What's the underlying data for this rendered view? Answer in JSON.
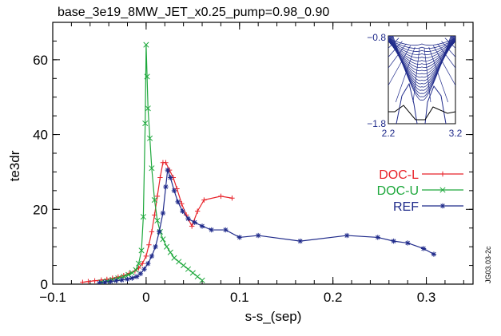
{
  "chart_data": {
    "type": "line",
    "title": "base_3e19_8MW_JET_x0.25_pump=0.98_0.90",
    "xlabel": "s-s_(sep)",
    "ylabel": "te3dr",
    "xlim": [
      -0.1,
      0.35
    ],
    "ylim": [
      0,
      70
    ],
    "x_ticks": [
      -0.1,
      0,
      0.1,
      0.2,
      0.3
    ],
    "x_tick_labels": [
      "−0.1",
      "0",
      "0.1",
      "0.2",
      "0.3"
    ],
    "y_ticks": [
      0,
      20,
      40,
      60
    ],
    "y_tick_labels": [
      "0",
      "20",
      "40",
      "60"
    ],
    "legend_position": "right",
    "series": [
      {
        "name": "DOC-L",
        "color": "#e8232a",
        "marker": "+",
        "x": [
          -0.068,
          -0.062,
          -0.055,
          -0.048,
          -0.042,
          -0.036,
          -0.03,
          -0.024,
          -0.018,
          -0.012,
          -0.008,
          -0.004,
          0.0,
          0.003,
          0.006,
          0.009,
          0.012,
          0.015,
          0.018,
          0.021,
          0.025,
          0.029,
          0.033,
          0.038,
          0.043,
          0.049,
          0.055,
          0.062,
          0.08,
          0.092
        ],
        "y": [
          0.5,
          0.7,
          0.9,
          1.1,
          1.3,
          1.6,
          1.9,
          2.3,
          2.9,
          3.5,
          4.3,
          5.5,
          7.5,
          10.5,
          14,
          18.5,
          23.5,
          28.5,
          32.5,
          32.5,
          30.5,
          28.5,
          25.5,
          21.5,
          18.5,
          15.5,
          19.5,
          22.5,
          23.5,
          23
        ]
      },
      {
        "name": "DOC-U",
        "color": "#1ea83c",
        "marker": "x",
        "x": [
          -0.048,
          -0.042,
          -0.036,
          -0.03,
          -0.024,
          -0.019,
          -0.015,
          -0.011,
          -0.008,
          -0.005,
          -0.003,
          -0.001,
          0.0,
          0.001,
          0.002,
          0.004,
          0.006,
          0.009,
          0.012,
          0.015,
          0.018,
          0.022,
          0.026,
          0.03,
          0.035,
          0.04,
          0.045,
          0.05,
          0.055,
          0.06
        ],
        "y": [
          0.5,
          0.8,
          1.2,
          1.6,
          2.0,
          2.5,
          3.0,
          3.8,
          5.5,
          9,
          18,
          43,
          64,
          55.5,
          47,
          39,
          31,
          22.5,
          17,
          14,
          12,
          10,
          8.5,
          7,
          6,
          5,
          4,
          3,
          2,
          1
        ]
      },
      {
        "name": "REF",
        "color": "#1f2a8a",
        "marker": "*",
        "x": [
          -0.05,
          -0.044,
          -0.038,
          -0.032,
          -0.026,
          -0.02,
          -0.015,
          -0.01,
          -0.006,
          -0.002,
          0.002,
          0.006,
          0.01,
          0.014,
          0.018,
          0.021,
          0.023,
          0.026,
          0.03,
          0.034,
          0.039,
          0.045,
          0.052,
          0.06,
          0.07,
          0.085,
          0.1,
          0.12,
          0.165,
          0.215,
          0.248,
          0.265,
          0.28,
          0.297,
          0.308
        ],
        "y": [
          0.3,
          0.5,
          0.7,
          0.9,
          1.1,
          1.3,
          1.6,
          2.0,
          2.8,
          4,
          5.5,
          7.5,
          10,
          14,
          19,
          26,
          30.5,
          28.5,
          25,
          22,
          19.5,
          17.5,
          16.5,
          15.5,
          14.5,
          14.5,
          12.5,
          13,
          11.5,
          13,
          12.5,
          11.5,
          11,
          9.5,
          8
        ]
      }
    ],
    "inset": {
      "xlim": [
        2.2,
        3.2
      ],
      "ylim": [
        -1.8,
        -0.8
      ],
      "x_tick_labels": [
        "2.2",
        "3.2"
      ],
      "y_tick_labels": [
        "−0.8",
        "−1.8"
      ]
    },
    "figure_id": "JG03.03-2c"
  }
}
